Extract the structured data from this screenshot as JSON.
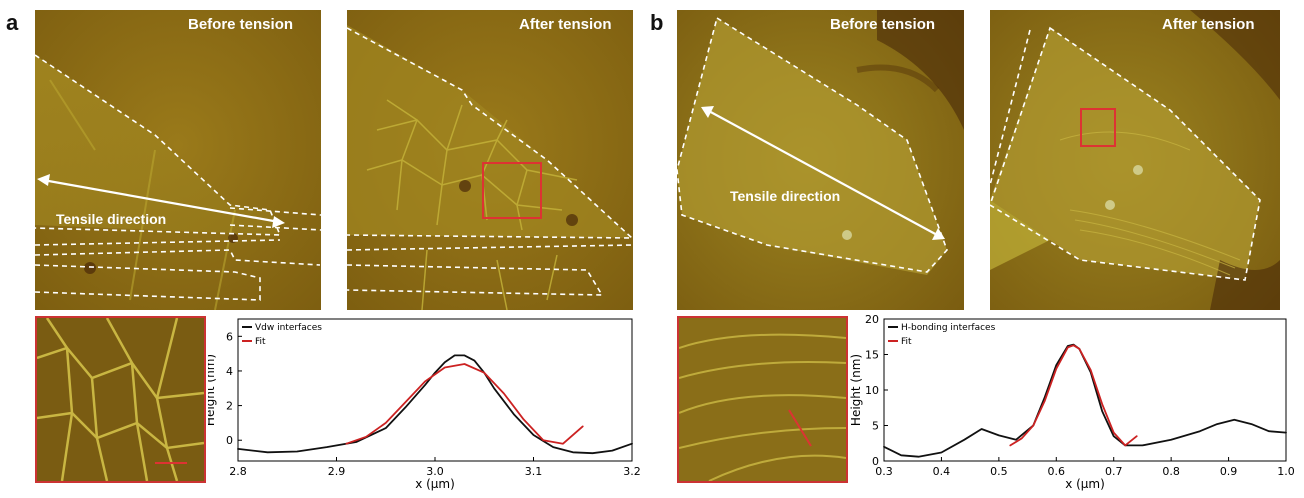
{
  "panels": [
    {
      "letter": "a",
      "before_title": "Before tension",
      "after_title": "After tension",
      "direction_label": "Tensile direction"
    },
    {
      "letter": "b",
      "before_title": "Before tension",
      "after_title": "After tension",
      "direction_label": "Tensile direction"
    }
  ],
  "colors": {
    "afm_base": "#8a6a12",
    "afm_bright": "#b9a52e",
    "outline": "#ffffff",
    "box": "#dd3333",
    "data_line": "#111111",
    "fit_line": "#cc2222"
  },
  "chart_data": [
    {
      "type": "line",
      "title": "",
      "xlabel": "x (μm)",
      "ylabel": "Height (nm)",
      "xlim": [
        2.8,
        3.2
      ],
      "ylim": [
        -1.2,
        7
      ],
      "xticks": [
        "2.8",
        "2.9",
        "3.0",
        "3.1",
        "3.2"
      ],
      "yticks": [
        "0",
        "2",
        "4",
        "6"
      ],
      "legend_position": "top-left",
      "series": [
        {
          "name": "Vdw interfaces",
          "x": [
            2.8,
            2.83,
            2.86,
            2.89,
            2.92,
            2.95,
            2.97,
            2.99,
            3.0,
            3.01,
            3.02,
            3.03,
            3.04,
            3.05,
            3.06,
            3.08,
            3.1,
            3.12,
            3.14,
            3.16,
            3.18,
            3.2
          ],
          "y": [
            -0.5,
            -0.7,
            -0.65,
            -0.4,
            -0.1,
            0.7,
            1.9,
            3.2,
            3.9,
            4.5,
            4.9,
            4.9,
            4.6,
            3.9,
            3.0,
            1.5,
            0.3,
            -0.4,
            -0.7,
            -0.75,
            -0.6,
            -0.2
          ]
        },
        {
          "name": "Fit",
          "x": [
            2.91,
            2.93,
            2.95,
            2.97,
            2.99,
            3.01,
            3.03,
            3.05,
            3.07,
            3.09,
            3.11,
            3.13,
            3.15
          ],
          "y": [
            -0.2,
            0.2,
            1.0,
            2.2,
            3.4,
            4.2,
            4.4,
            3.9,
            2.7,
            1.2,
            0.0,
            -0.2,
            0.8
          ]
        }
      ]
    },
    {
      "type": "line",
      "title": "",
      "xlabel": "x (μm)",
      "ylabel": "Height (nm)",
      "xlim": [
        0.3,
        1.0
      ],
      "ylim": [
        0,
        20
      ],
      "xticks": [
        "0.3",
        "0.4",
        "0.5",
        "0.6",
        "0.7",
        "0.8",
        "0.9",
        "1.0"
      ],
      "yticks": [
        "0",
        "5",
        "10",
        "15",
        "20"
      ],
      "legend_position": "top-left",
      "series": [
        {
          "name": "H-bonding interfaces",
          "x": [
            0.3,
            0.33,
            0.36,
            0.4,
            0.44,
            0.47,
            0.5,
            0.53,
            0.56,
            0.58,
            0.6,
            0.62,
            0.63,
            0.64,
            0.66,
            0.68,
            0.7,
            0.72,
            0.75,
            0.8,
            0.85,
            0.88,
            0.91,
            0.94,
            0.97,
            1.0
          ],
          "y": [
            2.0,
            0.8,
            0.6,
            1.2,
            3.0,
            4.5,
            3.6,
            3.0,
            5.0,
            9.0,
            13.5,
            16.2,
            16.4,
            15.8,
            12.5,
            7.0,
            3.5,
            2.2,
            2.2,
            3.0,
            4.2,
            5.2,
            5.8,
            5.2,
            4.2,
            4.0
          ]
        },
        {
          "name": "Fit",
          "x": [
            0.52,
            0.54,
            0.56,
            0.58,
            0.6,
            0.62,
            0.63,
            0.64,
            0.66,
            0.68,
            0.7,
            0.72,
            0.74
          ],
          "y": [
            2.2,
            3.2,
            5.0,
            8.5,
            13.0,
            16.0,
            16.3,
            15.8,
            12.8,
            8.0,
            4.0,
            2.2,
            3.5
          ]
        }
      ]
    }
  ]
}
